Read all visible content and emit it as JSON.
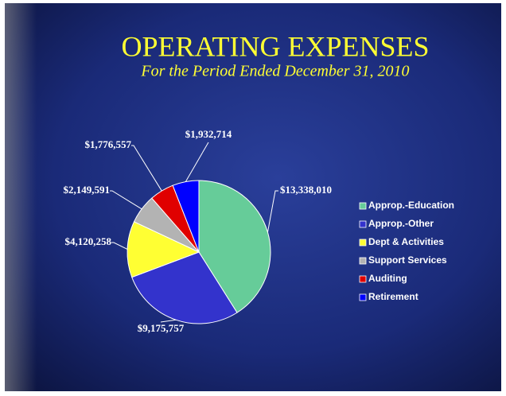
{
  "chart_data": {
    "type": "pie",
    "title": "OPERATING EXPENSES",
    "subtitle": "For the Period Ended December 31, 2010",
    "categories": [
      "Approp.-Education",
      "Approp.-Other",
      "Dept & Activities",
      "Support Services",
      "Auditing",
      "Retirement"
    ],
    "values": [
      13338010,
      9175757,
      4120258,
      2149591,
      1776557,
      1932714
    ],
    "value_labels": [
      "$13,338,010",
      "$9,175,757",
      "$4,120,258",
      "$2,149,591",
      "$1,776,557",
      "$1,932,714"
    ],
    "colors": [
      "#66cc99",
      "#3333cc",
      "#ffff33",
      "#b3b3b3",
      "#e00000",
      "#0000ff"
    ],
    "legend": "right"
  }
}
